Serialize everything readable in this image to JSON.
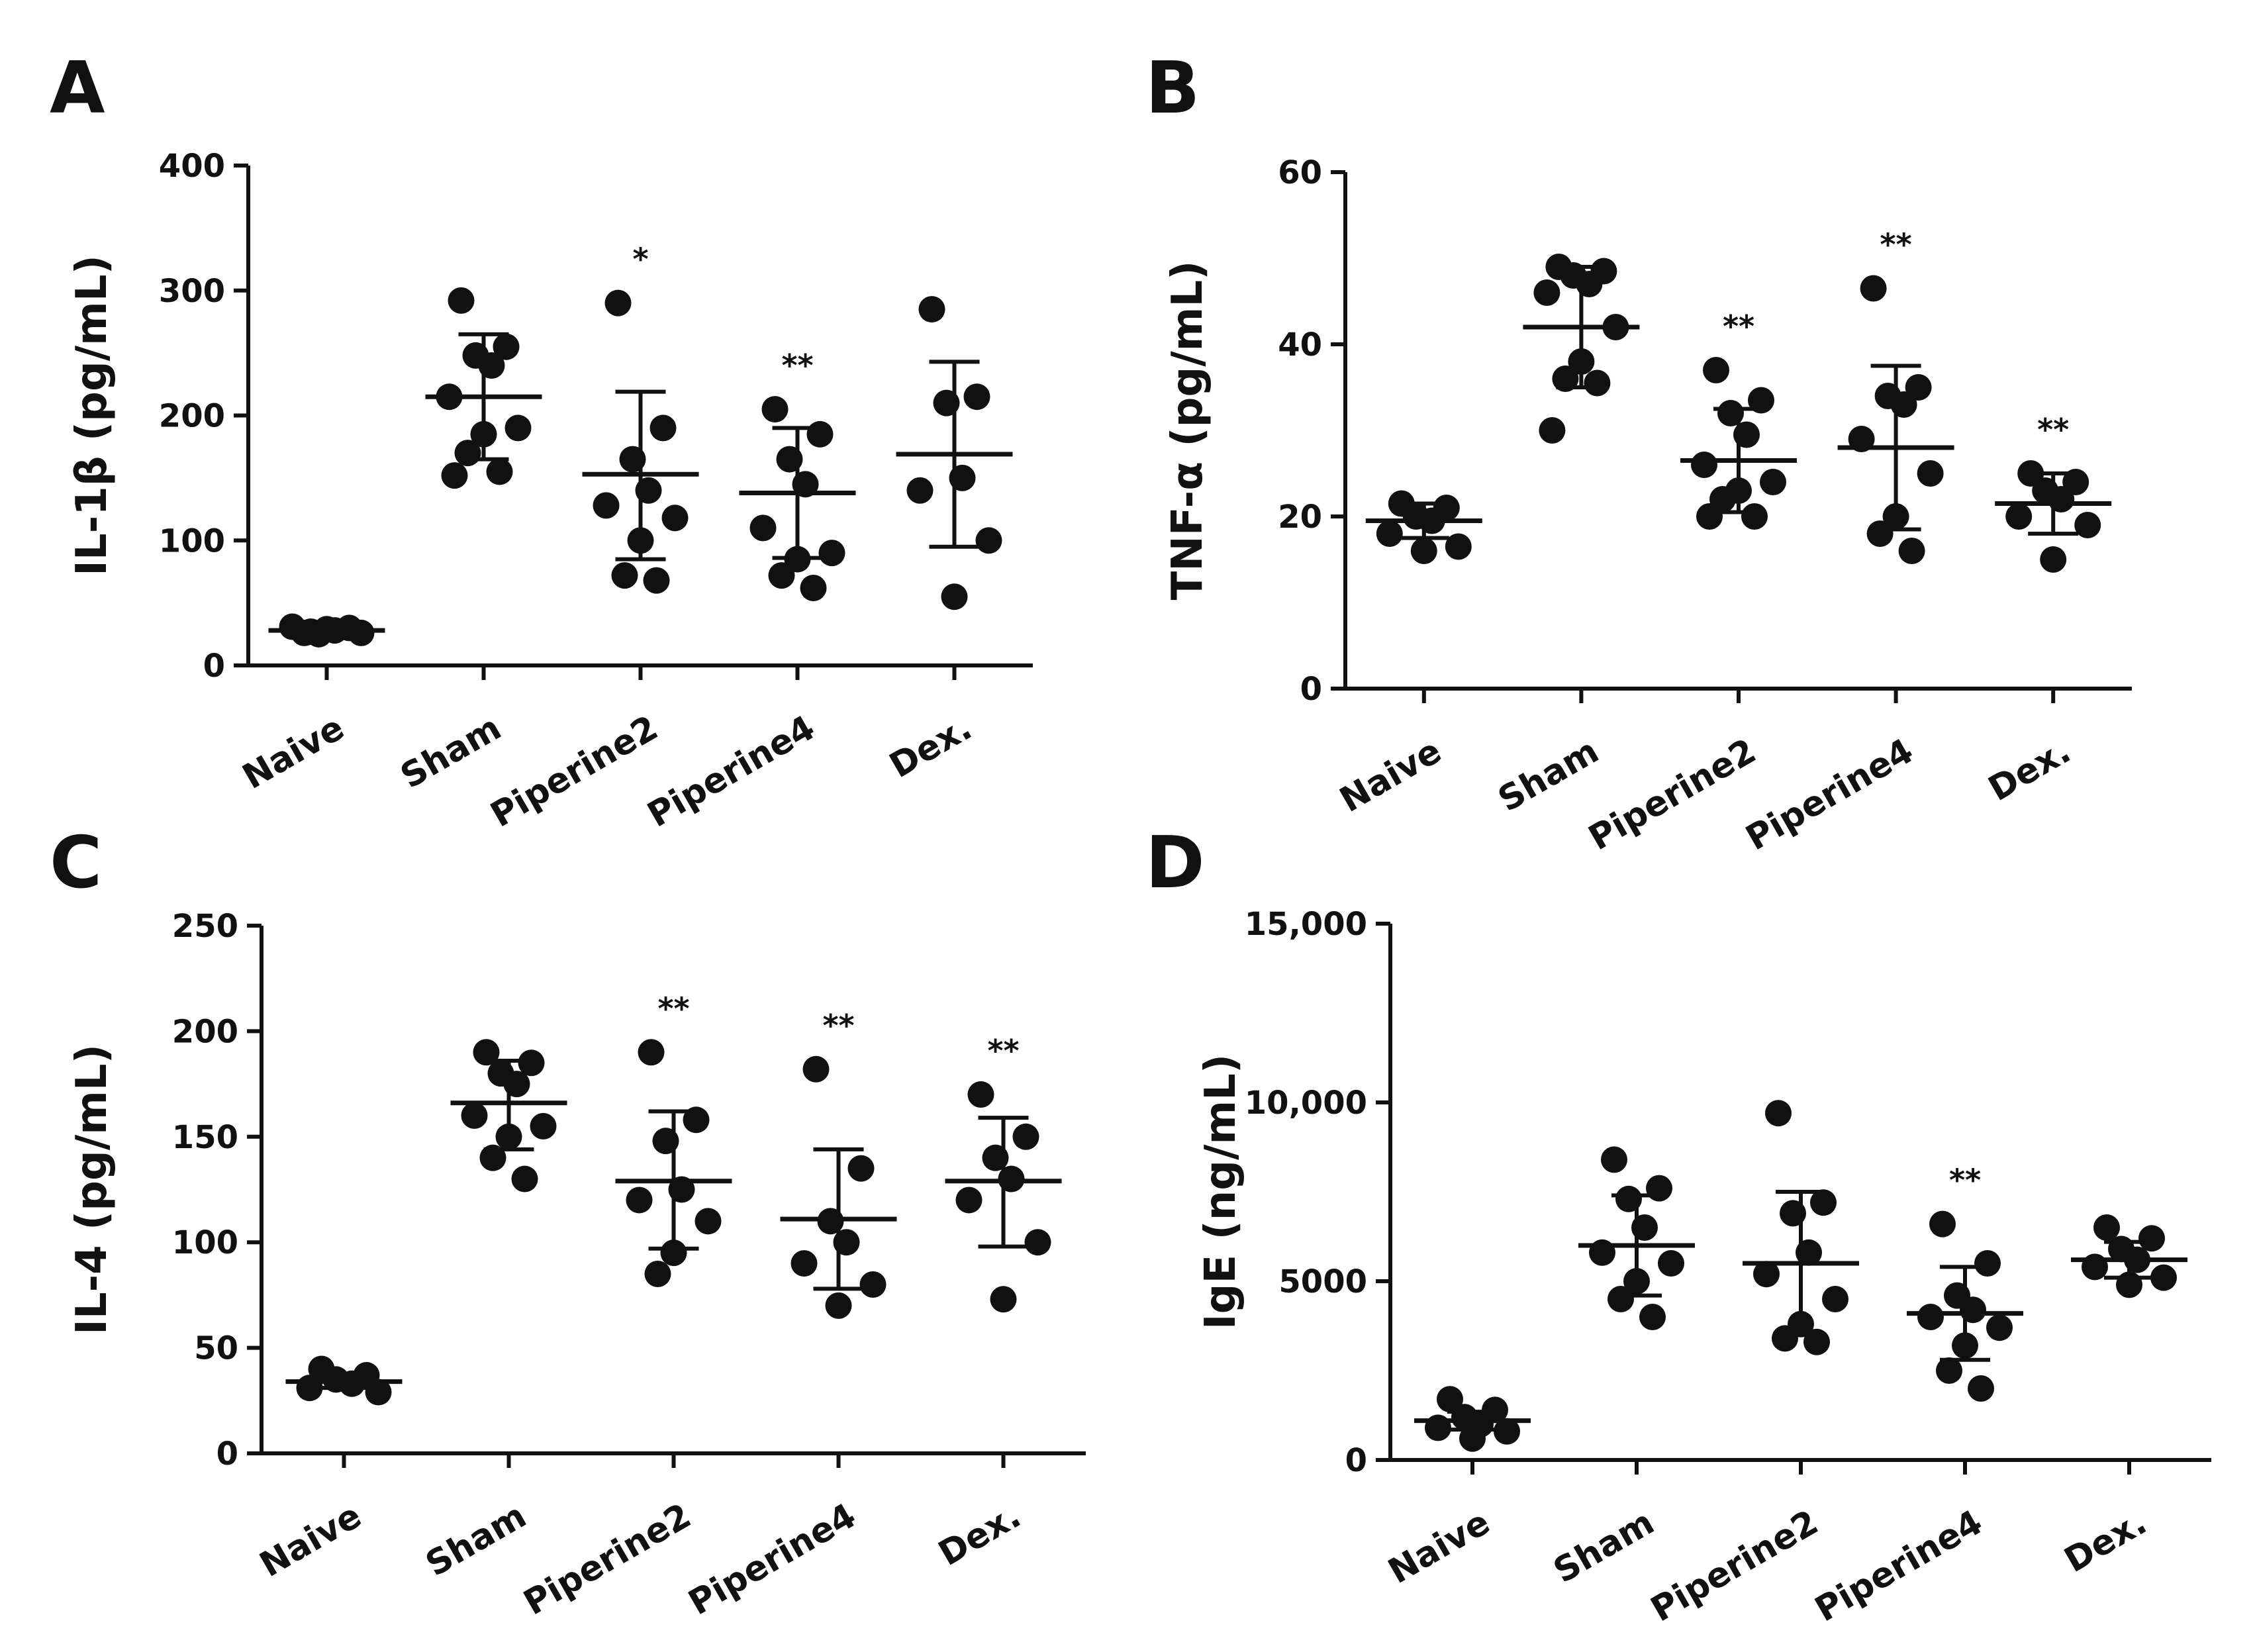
{
  "figure_title": "",
  "colors": {
    "ink": "#111111",
    "background": "#ffffff"
  },
  "chart_data": [
    {
      "id": "A",
      "panel_label": "A",
      "type": "scatter",
      "title": "",
      "xlabel": "",
      "ylabel": "IL-1β (pg/mL)",
      "categories": [
        "Naive",
        "Sham",
        "Piperine2",
        "Piperine4",
        "Dex."
      ],
      "ylim": [
        0,
        400
      ],
      "yticks": [
        0,
        100,
        200,
        300,
        400
      ],
      "ytick_labels": [
        "0",
        "100",
        "200",
        "300",
        "400"
      ],
      "grid": false,
      "means": [
        28,
        215,
        153,
        138,
        169
      ],
      "sd_low": [
        24,
        165,
        85,
        86,
        95
      ],
      "sd_high": [
        32,
        265,
        219,
        190,
        243
      ],
      "significance": [
        "",
        "",
        "*",
        "**",
        ""
      ],
      "points": [
        [
          26,
          30,
          25,
          28,
          31,
          26,
          29,
          27
        ],
        [
          292,
          255,
          248,
          240,
          215,
          190,
          185,
          170,
          155,
          152
        ],
        [
          290,
          190,
          165,
          140,
          128,
          118,
          100,
          72,
          68
        ],
        [
          205,
          185,
          165,
          145,
          110,
          90,
          85,
          72,
          62
        ],
        [
          285,
          215,
          210,
          150,
          140,
          100,
          55
        ]
      ]
    },
    {
      "id": "B",
      "panel_label": "B",
      "type": "scatter",
      "title": "",
      "xlabel": "",
      "ylabel": "TNF-α (pg/mL)",
      "categories": [
        "Naive",
        "Sham",
        "Piperine2",
        "Piperine4",
        "Dex."
      ],
      "ylim": [
        0,
        60
      ],
      "yticks": [
        0,
        20,
        40,
        60
      ],
      "ytick_labels": [
        "0",
        "20",
        "40",
        "60"
      ],
      "grid": false,
      "means": [
        19.5,
        42,
        26.5,
        28,
        21.5
      ],
      "sd_low": [
        17.5,
        35,
        20.5,
        18.5,
        18
      ],
      "sd_high": [
        21.5,
        49,
        32.5,
        37.5,
        25
      ],
      "significance": [
        "",
        "",
        "**",
        "**",
        "**"
      ],
      "points": [
        [
          21.5,
          21,
          20,
          19.5,
          18,
          16.5,
          16
        ],
        [
          49,
          48.5,
          48,
          47,
          46,
          42,
          38,
          36,
          35.5,
          30
        ],
        [
          37,
          33.5,
          32,
          29.5,
          26,
          24,
          23,
          22,
          20,
          20
        ],
        [
          46.5,
          35,
          34,
          33,
          29,
          25,
          20,
          18,
          16
        ],
        [
          25,
          24,
          23,
          22,
          20,
          19,
          15
        ]
      ]
    },
    {
      "id": "C",
      "panel_label": "C",
      "type": "scatter",
      "title": "",
      "xlabel": "",
      "ylabel": "IL-4 (pg/mL)",
      "categories": [
        "Naive",
        "Sham",
        "Piperine2",
        "Piperine4",
        "Dex."
      ],
      "ylim": [
        0,
        250
      ],
      "yticks": [
        0,
        50,
        100,
        150,
        200,
        250
      ],
      "ytick_labels": [
        "0",
        "50",
        "100",
        "150",
        "200",
        "250"
      ],
      "grid": false,
      "means": [
        34,
        166,
        129,
        111,
        129
      ],
      "sd_low": [
        31,
        144,
        97,
        78,
        98
      ],
      "sd_high": [
        37,
        186,
        162,
        144,
        159
      ],
      "significance": [
        "",
        "",
        "**",
        "**",
        "**"
      ],
      "points": [
        [
          40,
          37,
          35,
          33,
          31,
          29
        ],
        [
          190,
          185,
          180,
          175,
          160,
          155,
          150,
          140,
          130
        ],
        [
          190,
          158,
          148,
          125,
          120,
          110,
          95,
          85
        ],
        [
          182,
          135,
          110,
          100,
          90,
          80,
          70
        ],
        [
          170,
          150,
          140,
          130,
          120,
          100,
          73
        ]
      ]
    },
    {
      "id": "D",
      "panel_label": "D",
      "type": "scatter",
      "title": "",
      "xlabel": "",
      "ylabel": "IgE (ng/mL)",
      "categories": [
        "Naive",
        "Sham",
        "Piperine2",
        "Piperine4",
        "Dex."
      ],
      "ylim": [
        0,
        15000
      ],
      "yticks": [
        0,
        5000,
        10000,
        15000
      ],
      "ytick_labels": [
        "0",
        "5000",
        "10,000",
        "15,000"
      ],
      "grid": false,
      "means": [
        1100,
        6000,
        5500,
        4100,
        5600
      ],
      "sd_low": [
        850,
        4600,
        3500,
        2800,
        5100
      ],
      "sd_high": [
        1350,
        7400,
        7500,
        5400,
        6100
      ],
      "significance": [
        "",
        "",
        "",
        "**",
        ""
      ],
      "points": [
        [
          1700,
          1400,
          1200,
          1000,
          900,
          800,
          600
        ],
        [
          8400,
          7600,
          7300,
          6500,
          5800,
          5500,
          5000,
          4500,
          4000
        ],
        [
          9700,
          7200,
          6900,
          5800,
          5200,
          4500,
          3800,
          3400,
          3300
        ],
        [
          6600,
          5500,
          4600,
          4200,
          4000,
          3700,
          3200,
          2500,
          2000
        ],
        [
          6500,
          6200,
          5900,
          5600,
          5400,
          5100,
          4900
        ]
      ]
    }
  ]
}
